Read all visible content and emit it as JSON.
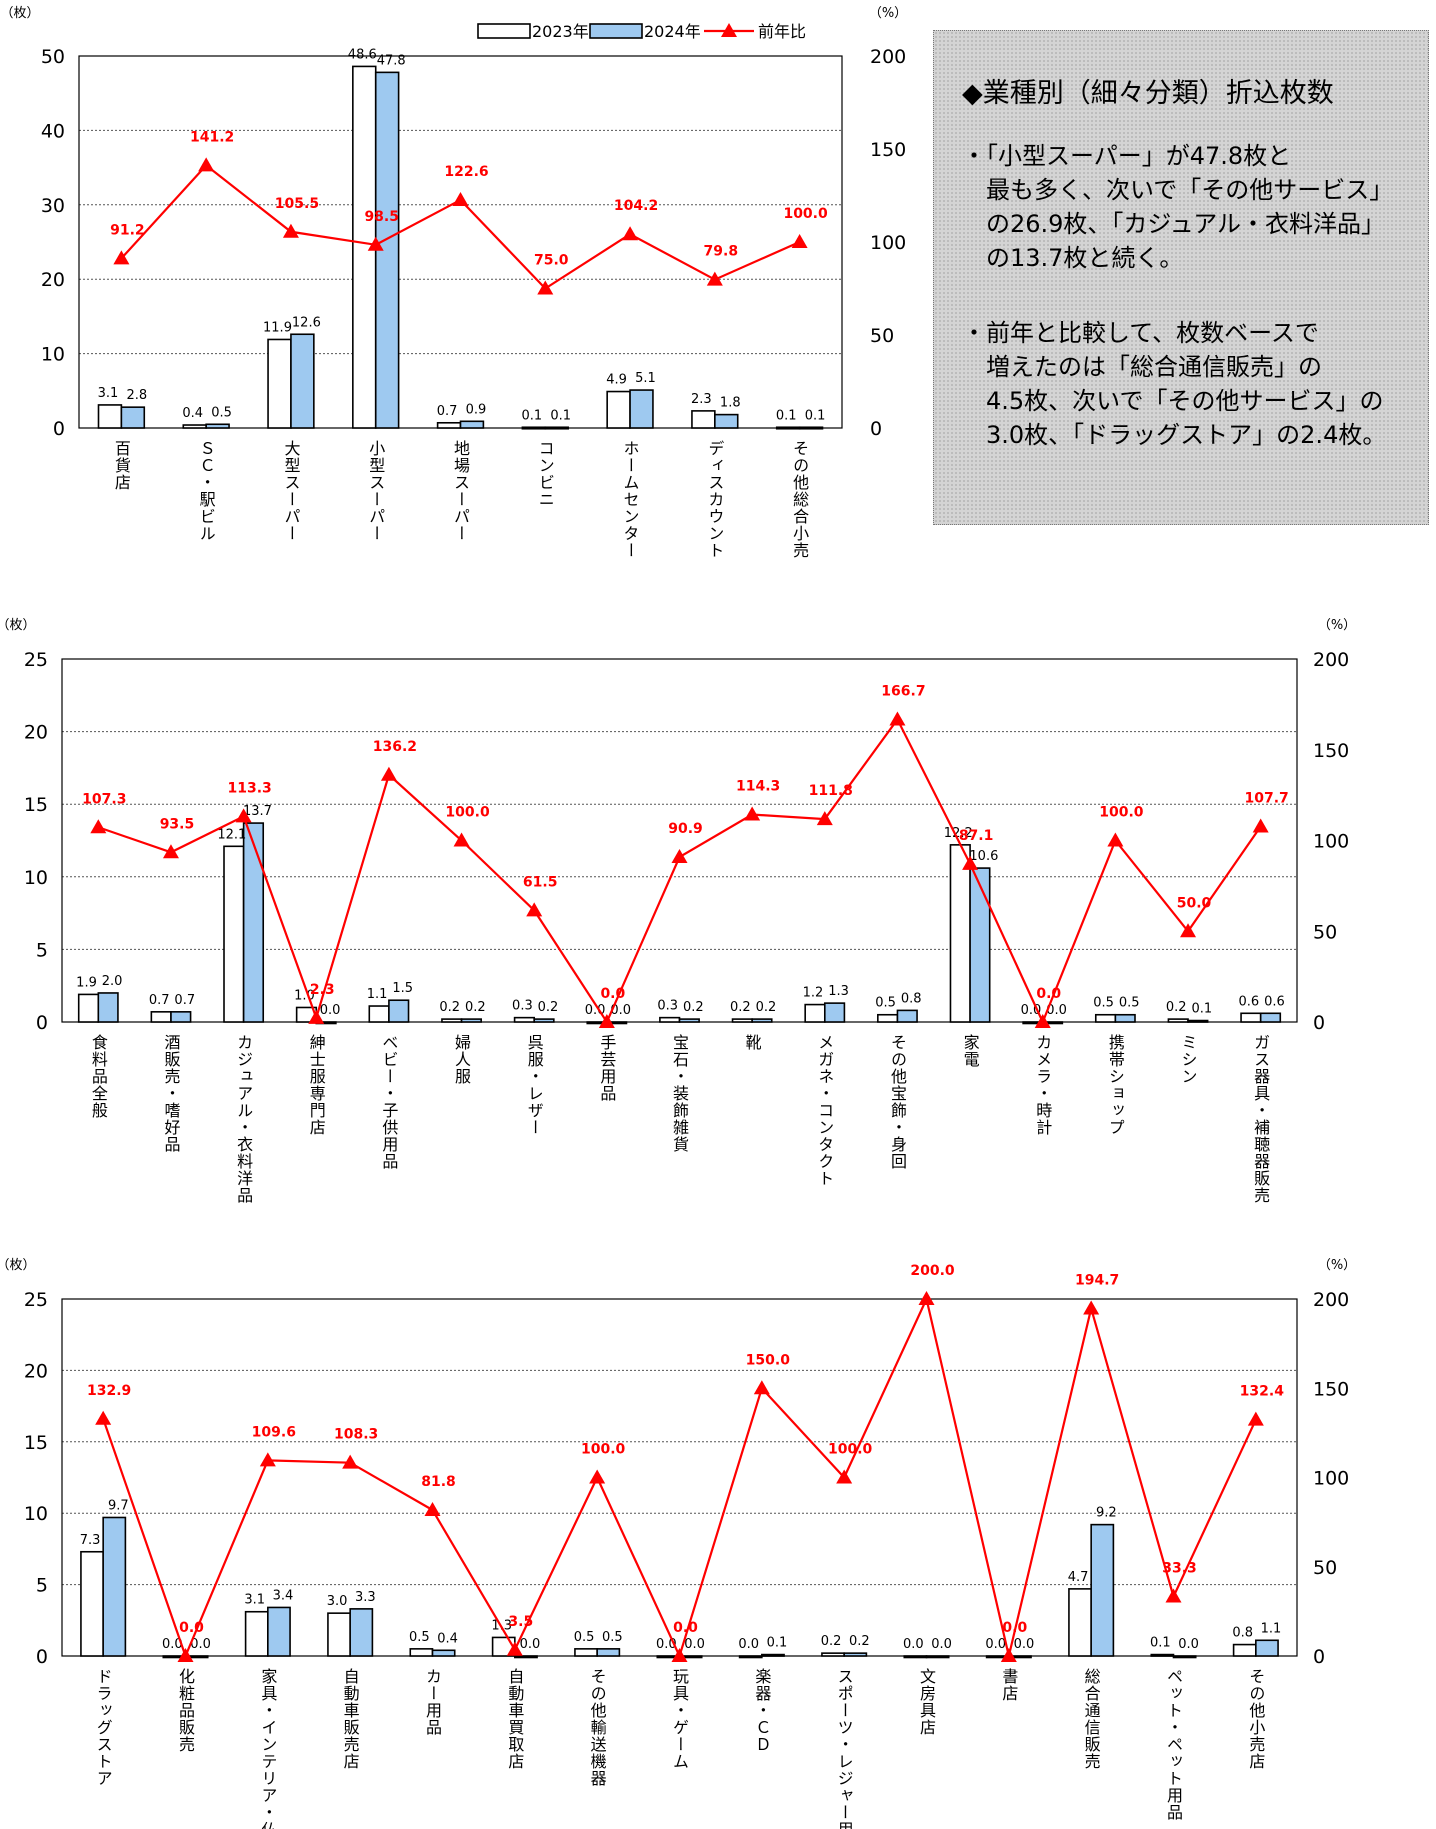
{
  "legend": {
    "y2023": "2023年",
    "y2024": "2024年",
    "ratio": "前年比"
  },
  "units": {
    "left": "（枚）",
    "right": "（%）"
  },
  "colors": {
    "bar2023": "#ffffff",
    "bar2024": "#9ec9f0",
    "line": "#ff0000",
    "border": "#000000"
  },
  "textbox": {
    "heading": "◆業種別（細々分類）折込枚数",
    "bullets": [
      "・「小型スーパー」が47.8枚と\n　最も多く、次いで「その他サービス」\n　の26.9枚、「カジュアル・衣料洋品」\n　の13.7枚と続く。",
      "・前年と比較して、枚数ベースで\n　増えたのは「総合通信販売」の\n　4.5枚、次いで「その他サービス」の\n　3.0枚、「ドラッグストア」の2.4枚。"
    ]
  },
  "chart_data": [
    {
      "type": "bar",
      "categories": [
        "百貨店",
        "ＳＣ・駅ビル",
        "大型スーパー",
        "小型スーパー",
        "地場スーパー",
        "コンビニ",
        "ホームセンター",
        "ディスカウント",
        "その他総合小売"
      ],
      "series": [
        {
          "name": "2023年",
          "values": [
            3.1,
            0.4,
            11.9,
            48.6,
            0.7,
            0.1,
            4.9,
            2.3,
            0.1
          ]
        },
        {
          "name": "2024年",
          "values": [
            2.8,
            0.5,
            12.6,
            47.8,
            0.9,
            0.1,
            5.1,
            1.8,
            0.1
          ]
        },
        {
          "name": "前年比",
          "type": "line",
          "axis": "right",
          "values": [
            91.2,
            141.2,
            105.5,
            98.5,
            122.6,
            75.0,
            104.2,
            79.8,
            100.0
          ]
        }
      ],
      "ylim": [
        0,
        50
      ],
      "yticks": [
        0,
        10,
        20,
        30,
        40,
        50
      ],
      "y2lim": [
        0,
        200
      ],
      "y2ticks": [
        0,
        50,
        100,
        150,
        200
      ],
      "grid": true,
      "legend": "top-right"
    },
    {
      "type": "bar",
      "categories": [
        "食料品全般",
        "酒販売・嗜好品",
        "カジュアル・衣料洋品",
        "紳士服専門店",
        "ベビー・子供用品",
        "婦人服",
        "呉服・レザー",
        "手芸用品",
        "宝石・装飾雑貨",
        "靴",
        "メガネ・コンタクト",
        "その他宝飾・身回",
        "家電",
        "カメラ・時計",
        "携帯ショップ",
        "ミシン",
        "ガス器具・補聴器販売"
      ],
      "series": [
        {
          "name": "2023年",
          "values": [
            1.9,
            0.7,
            12.1,
            1.0,
            1.1,
            0.2,
            0.3,
            0.0,
            0.3,
            0.2,
            1.2,
            0.5,
            12.2,
            0.0,
            0.5,
            0.2,
            0.6
          ]
        },
        {
          "name": "2024年",
          "values": [
            2.0,
            0.7,
            13.7,
            0.0,
            1.5,
            0.2,
            0.2,
            0.0,
            0.2,
            0.2,
            1.3,
            0.8,
            10.6,
            0.0,
            0.5,
            0.1,
            0.6
          ]
        },
        {
          "name": "前年比",
          "type": "line",
          "axis": "right",
          "values": [
            107.3,
            93.5,
            113.3,
            2.3,
            136.2,
            100.0,
            61.5,
            0.0,
            90.9,
            114.3,
            111.8,
            166.7,
            87.1,
            0.0,
            100.0,
            50.0,
            107.7
          ]
        }
      ],
      "ylim": [
        0,
        25
      ],
      "yticks": [
        0,
        5,
        10,
        15,
        20,
        25
      ],
      "y2lim": [
        0,
        200
      ],
      "y2ticks": [
        0,
        50,
        100,
        150,
        200
      ],
      "grid": true
    },
    {
      "type": "bar",
      "categories": [
        "ドラッグストア",
        "化粧品販売",
        "家具・インテリア・仏壇",
        "自動車販売店",
        "カー用品",
        "自動車買取店",
        "その他輸送機器",
        "玩具・ゲーム",
        "楽器・ＣＤ",
        "スポーツ・レジャー用品",
        "文房具店",
        "書店",
        "総合通信販売",
        "ペット・ペット用品",
        "その他小売店"
      ],
      "series": [
        {
          "name": "2023年",
          "values": [
            7.3,
            0.0,
            3.1,
            3.0,
            0.5,
            1.3,
            0.5,
            0.0,
            0.0,
            0.2,
            0.0,
            0.0,
            4.7,
            0.1,
            0.8
          ]
        },
        {
          "name": "2024年",
          "values": [
            9.7,
            0.0,
            3.4,
            3.3,
            0.4,
            0.0,
            0.5,
            0.0,
            0.1,
            0.2,
            0.0,
            0.0,
            9.2,
            0.0,
            1.1
          ]
        },
        {
          "name": "前年比",
          "type": "line",
          "axis": "right",
          "values": [
            132.9,
            0.0,
            109.6,
            108.3,
            81.8,
            3.5,
            100.0,
            0.0,
            150.0,
            100.0,
            200.0,
            0.0,
            194.7,
            33.3,
            132.4
          ]
        }
      ],
      "ylim": [
        0,
        25
      ],
      "yticks": [
        0,
        5,
        10,
        15,
        20,
        25
      ],
      "y2lim": [
        0,
        200
      ],
      "y2ticks": [
        0,
        50,
        100,
        150,
        200
      ],
      "grid": true
    }
  ]
}
